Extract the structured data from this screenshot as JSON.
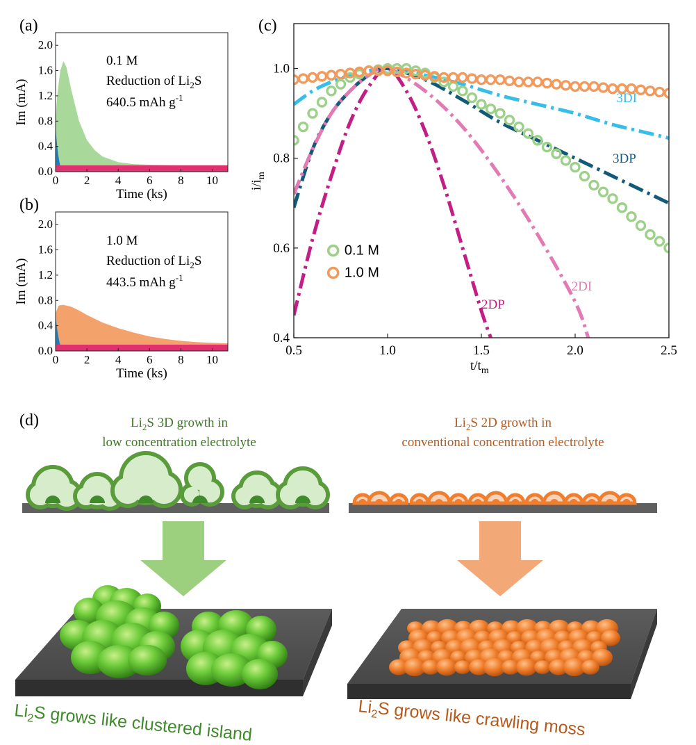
{
  "panels": {
    "a_label": "(a)",
    "b_label": "(b)",
    "c_label": "(c)",
    "d_label": "(d)"
  },
  "colors": {
    "green_fill": "#a8d89a",
    "orange_fill": "#f4a26c",
    "pink_base": "#e0306e",
    "blue_start": "#1e7fb8",
    "ring_green": "#9dd18a",
    "ring_orange": "#f29a5c",
    "line_3DI": "#36bde8",
    "line_3DP": "#135a7a",
    "line_2DP": "#c21f86",
    "line_2DI": "#e27ab4",
    "arrow_green": "#9ccf7e",
    "arrow_orange": "#f3a877",
    "dark_green_text": "#3e7a25",
    "brown_text": "#b65a1c"
  },
  "chart_data": [
    {
      "id": "a",
      "type": "area",
      "title": "",
      "xlabel": "Time (ks)",
      "ylabel": "Im (mA)",
      "xlim": [
        0,
        11
      ],
      "ylim": [
        0,
        2.2
      ],
      "xticks": [
        "0",
        "2",
        "4",
        "6",
        "8",
        "10"
      ],
      "yticks": [
        "0.0",
        "0.4",
        "0.8",
        "1.2",
        "1.6",
        "2.0"
      ],
      "annotations": [
        "0.1 M",
        "Reduction of Li",
        "2",
        "S",
        "640.5 mAh g",
        "-1"
      ],
      "series": [
        {
          "name": "",
          "color": "#a8d89a",
          "x": [
            0,
            0.1,
            0.3,
            0.5,
            0.7,
            1.0,
            1.5,
            2.0,
            2.5,
            3.0,
            4.0,
            5.0,
            6.0,
            8.0,
            11.0
          ],
          "y": [
            0.8,
            1.2,
            1.6,
            1.75,
            1.65,
            1.3,
            0.8,
            0.5,
            0.34,
            0.24,
            0.15,
            0.12,
            0.11,
            0.1,
            0.1
          ]
        },
        {
          "name": "",
          "color": "#e0306e",
          "x": [
            0,
            11
          ],
          "y": [
            0.1,
            0.1
          ]
        }
      ]
    },
    {
      "id": "b",
      "type": "area",
      "title": "",
      "xlabel": "Time (ks)",
      "ylabel": "Im (mA)",
      "xlim": [
        0,
        11
      ],
      "ylim": [
        0,
        2.2
      ],
      "xticks": [
        "0",
        "2",
        "4",
        "6",
        "8",
        "10"
      ],
      "yticks": [
        "0.0",
        "0.4",
        "0.8",
        "1.2",
        "1.6",
        "2.0"
      ],
      "annotations": [
        "1.0 M",
        "Reduction of Li",
        "2",
        "S",
        "443.5 mAh g",
        "-1"
      ],
      "series": [
        {
          "name": "",
          "color": "#f4a26c",
          "x": [
            0,
            0.2,
            0.5,
            1.0,
            1.5,
            2.0,
            3.0,
            4.0,
            5.0,
            6.0,
            7.0,
            8.0,
            9.0,
            10.0,
            11.0
          ],
          "y": [
            0.6,
            0.72,
            0.73,
            0.7,
            0.64,
            0.57,
            0.45,
            0.36,
            0.29,
            0.23,
            0.19,
            0.16,
            0.14,
            0.13,
            0.12
          ]
        },
        {
          "name": "",
          "color": "#e0306e",
          "x": [
            0,
            11
          ],
          "y": [
            0.1,
            0.1
          ]
        }
      ]
    },
    {
      "id": "c",
      "type": "line",
      "title": "",
      "xlabel": "t/t",
      "xlabel_sub": "m",
      "ylabel": "i/i",
      "ylabel_sub": "m",
      "xlim": [
        0.5,
        2.5
      ],
      "ylim": [
        0.4,
        1.1
      ],
      "xticks": [
        "0.5",
        "1.0",
        "1.5",
        "2.0",
        "2.5"
      ],
      "yticks": [
        "0.4",
        "0.6",
        "0.8",
        "1.0"
      ],
      "legend_position": "lower-left",
      "series": [
        {
          "name": "0.1 M",
          "style": "open-circle",
          "color": "#9dd18a",
          "x": [
            0.5,
            0.6,
            0.7,
            0.8,
            0.9,
            1.0,
            1.1,
            1.2,
            1.3,
            1.4,
            1.5,
            1.6,
            1.7,
            1.8,
            1.9,
            2.0,
            2.1,
            2.2,
            2.3,
            2.4,
            2.5
          ],
          "y": [
            0.84,
            0.9,
            0.95,
            0.98,
            0.995,
            1.0,
            1.0,
            0.99,
            0.97,
            0.95,
            0.92,
            0.9,
            0.87,
            0.84,
            0.81,
            0.78,
            0.74,
            0.71,
            0.67,
            0.63,
            0.6
          ]
        },
        {
          "name": "1.0 M",
          "style": "open-circle",
          "color": "#f29a5c",
          "x": [
            0.5,
            0.6,
            0.7,
            0.8,
            0.9,
            1.0,
            1.1,
            1.2,
            1.3,
            1.4,
            1.5,
            1.6,
            1.7,
            1.8,
            1.9,
            2.0,
            2.1,
            2.2,
            2.3,
            2.4,
            2.5
          ],
          "y": [
            0.975,
            0.98,
            0.985,
            0.99,
            0.995,
            0.995,
            0.99,
            0.985,
            0.98,
            0.98,
            0.975,
            0.975,
            0.97,
            0.97,
            0.965,
            0.96,
            0.96,
            0.955,
            0.955,
            0.95,
            0.945
          ]
        },
        {
          "name": "3DI",
          "style": "dash-dot",
          "color": "#36bde8",
          "x": [
            0.5,
            0.6,
            0.7,
            0.8,
            0.9,
            1.0,
            1.2,
            1.4,
            1.6,
            1.8,
            2.0,
            2.2,
            2.4,
            2.5
          ],
          "y": [
            0.92,
            0.95,
            0.97,
            0.985,
            0.995,
            1.0,
            0.985,
            0.965,
            0.94,
            0.92,
            0.9,
            0.875,
            0.855,
            0.845
          ]
        },
        {
          "name": "3DP",
          "style": "dash-dot",
          "color": "#135a7a",
          "x": [
            0.5,
            0.6,
            0.7,
            0.8,
            0.9,
            1.0,
            1.2,
            1.4,
            1.6,
            1.8,
            2.0,
            2.2,
            2.4,
            2.5
          ],
          "y": [
            0.69,
            0.82,
            0.9,
            0.95,
            0.985,
            1.0,
            0.975,
            0.93,
            0.88,
            0.84,
            0.8,
            0.76,
            0.72,
            0.7
          ]
        },
        {
          "name": "2DP",
          "style": "dash-dot",
          "color": "#c21f86",
          "x": [
            0.5,
            0.6,
            0.7,
            0.8,
            0.9,
            1.0,
            1.1,
            1.2,
            1.3,
            1.4,
            1.5,
            1.55
          ],
          "y": [
            0.45,
            0.62,
            0.76,
            0.88,
            0.96,
            1.0,
            0.95,
            0.86,
            0.74,
            0.6,
            0.46,
            0.4
          ]
        },
        {
          "name": "2DI",
          "style": "dash-dot",
          "color": "#e27ab4",
          "x": [
            0.5,
            0.6,
            0.7,
            0.8,
            0.9,
            1.0,
            1.2,
            1.4,
            1.6,
            1.8,
            2.0,
            2.07
          ],
          "y": [
            0.72,
            0.82,
            0.9,
            0.95,
            0.985,
            1.0,
            0.95,
            0.87,
            0.76,
            0.63,
            0.48,
            0.4
          ]
        }
      ],
      "labels": {
        "s3DI": "3DI",
        "s3DP": "3DP",
        "s2DP": "2DP",
        "s2DI": "2DI"
      }
    }
  ],
  "schematic": {
    "left_caption_line1_pre": "Li",
    "left_caption_sub": "2",
    "left_caption_line1_post": "S 3D growth in",
    "left_caption_line2": "low concentration electrolyte",
    "right_caption_line1_pre": "Li",
    "right_caption_sub": "2",
    "right_caption_line1_post": "S 2D growth in",
    "right_caption_line2": "conventional concentration electrolyte",
    "left_bottom_pre": "Li",
    "left_bottom_sub": "2",
    "left_bottom_post": "S grows like clustered island",
    "right_bottom_pre": "Li",
    "right_bottom_sub": "2",
    "right_bottom_post": "S grows like crawling moss"
  }
}
